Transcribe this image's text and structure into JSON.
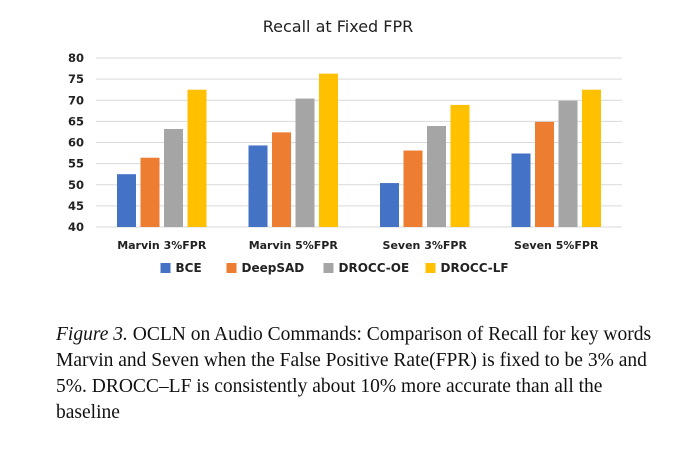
{
  "chart_data": {
    "type": "bar",
    "title": "Recall at Fixed FPR",
    "categories": [
      "Marvin 3%FPR",
      "Marvin 5%FPR",
      "Seven 3%FPR",
      "Seven 5%FPR"
    ],
    "series": [
      {
        "name": "BCE",
        "values": [
          52.5,
          59.3,
          50.4,
          57.4
        ],
        "color": "#4472c4"
      },
      {
        "name": "DeepSAD",
        "values": [
          56.4,
          62.4,
          58.1,
          64.9
        ],
        "color": "#ed7d31"
      },
      {
        "name": "DROCC-OE",
        "values": [
          63.2,
          70.4,
          63.9,
          69.9
        ],
        "color": "#a5a5a5"
      },
      {
        "name": "DROCC-LF",
        "values": [
          72.5,
          76.3,
          68.9,
          72.5
        ],
        "color": "#ffc000"
      }
    ],
    "ylim": [
      40,
      80
    ],
    "yticks": [
      40,
      45,
      50,
      55,
      60,
      65,
      70,
      75,
      80
    ],
    "grid": true,
    "legend_position": "bottom"
  },
  "caption": {
    "label": "Figure 3.",
    "text": " OCLN on Audio Commands: Comparison of Recall for key words  Marvin and Seven when the False Positive Rate(FPR) is fixed to be 3% and 5%. DROCC–LF is consistently about 10% more accurate than all the baseline"
  }
}
